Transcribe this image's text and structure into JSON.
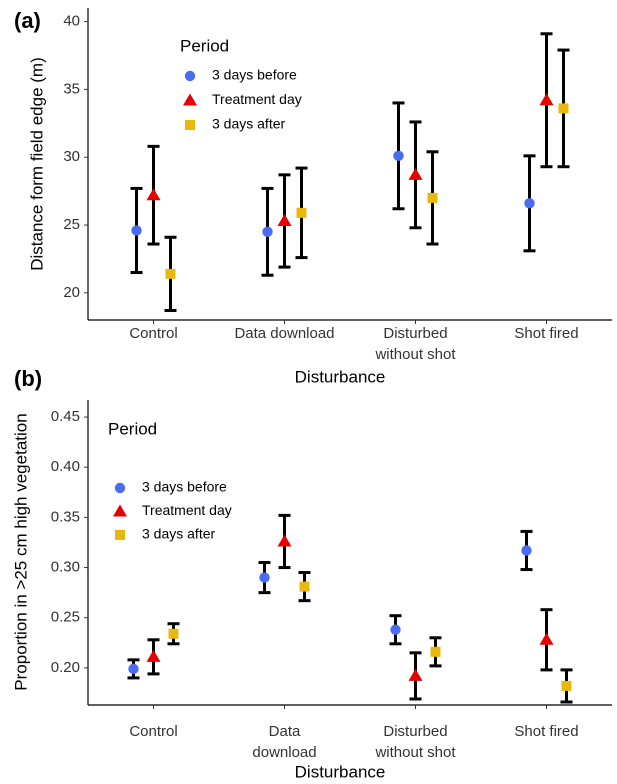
{
  "chart_data": [
    {
      "type": "errorbar",
      "panel_label": "(a)",
      "x_label": "Disturbance",
      "y_label": "Distance form field edge (m)",
      "categories": [
        [
          "Control"
        ],
        [
          "Data download"
        ],
        [
          "Disturbed",
          "without shot"
        ],
        [
          "Shot fired"
        ]
      ],
      "legend_title": "Period",
      "legend_position": "upper left",
      "series": [
        {
          "name": "3 days before",
          "color": "#4a6cf0",
          "marker": "circle",
          "values": [
            24.6,
            24.5,
            30.1,
            26.6
          ],
          "errors": [
            3.1,
            3.2,
            3.9,
            3.5
          ]
        },
        {
          "name": "Treatment day",
          "color": "#e60000",
          "marker": "triangle",
          "values": [
            27.2,
            25.3,
            28.7,
            34.2
          ],
          "errors": [
            3.6,
            3.4,
            3.9,
            4.9
          ]
        },
        {
          "name": "3 days after",
          "color": "#e8b80c",
          "marker": "square",
          "values": [
            21.4,
            25.9,
            27.0,
            33.6
          ],
          "errors": [
            2.7,
            3.3,
            3.4,
            4.3
          ]
        }
      ],
      "ylim": [
        18,
        41
      ],
      "yticks": [
        20,
        25,
        30,
        35,
        40
      ]
    },
    {
      "type": "errorbar",
      "panel_label": "(b)",
      "x_label": "Disturbance",
      "y_label": "Proportion in >25 cm high vegetation",
      "categories": [
        [
          "Control"
        ],
        [
          "Data",
          "download"
        ],
        [
          "Disturbed",
          "without shot"
        ],
        [
          "Shot fired"
        ]
      ],
      "legend_title": "Period",
      "legend_position": "upper left",
      "series": [
        {
          "name": "3 days before",
          "color": "#4a6cf0",
          "marker": "circle",
          "values": [
            0.199,
            0.29,
            0.238,
            0.317
          ],
          "errors": [
            0.009,
            0.015,
            0.014,
            0.019
          ]
        },
        {
          "name": "Treatment day",
          "color": "#e60000",
          "marker": "triangle",
          "values": [
            0.211,
            0.326,
            0.192,
            0.228
          ],
          "errors": [
            0.017,
            0.026,
            0.023,
            0.03
          ]
        },
        {
          "name": "3 days after",
          "color": "#e8b80c",
          "marker": "square",
          "values": [
            0.234,
            0.281,
            0.216,
            0.182
          ],
          "errors": [
            0.01,
            0.014,
            0.014,
            0.016
          ]
        }
      ],
      "ylim": [
        0.163,
        0.467
      ],
      "yticks": [
        {
          "value": 0.2,
          "label": "0.20"
        },
        0.25,
        {
          "value": 0.3,
          "label": "0.30"
        },
        0.35,
        {
          "value": 0.4,
          "label": "0.40"
        },
        0.45
      ]
    }
  ]
}
